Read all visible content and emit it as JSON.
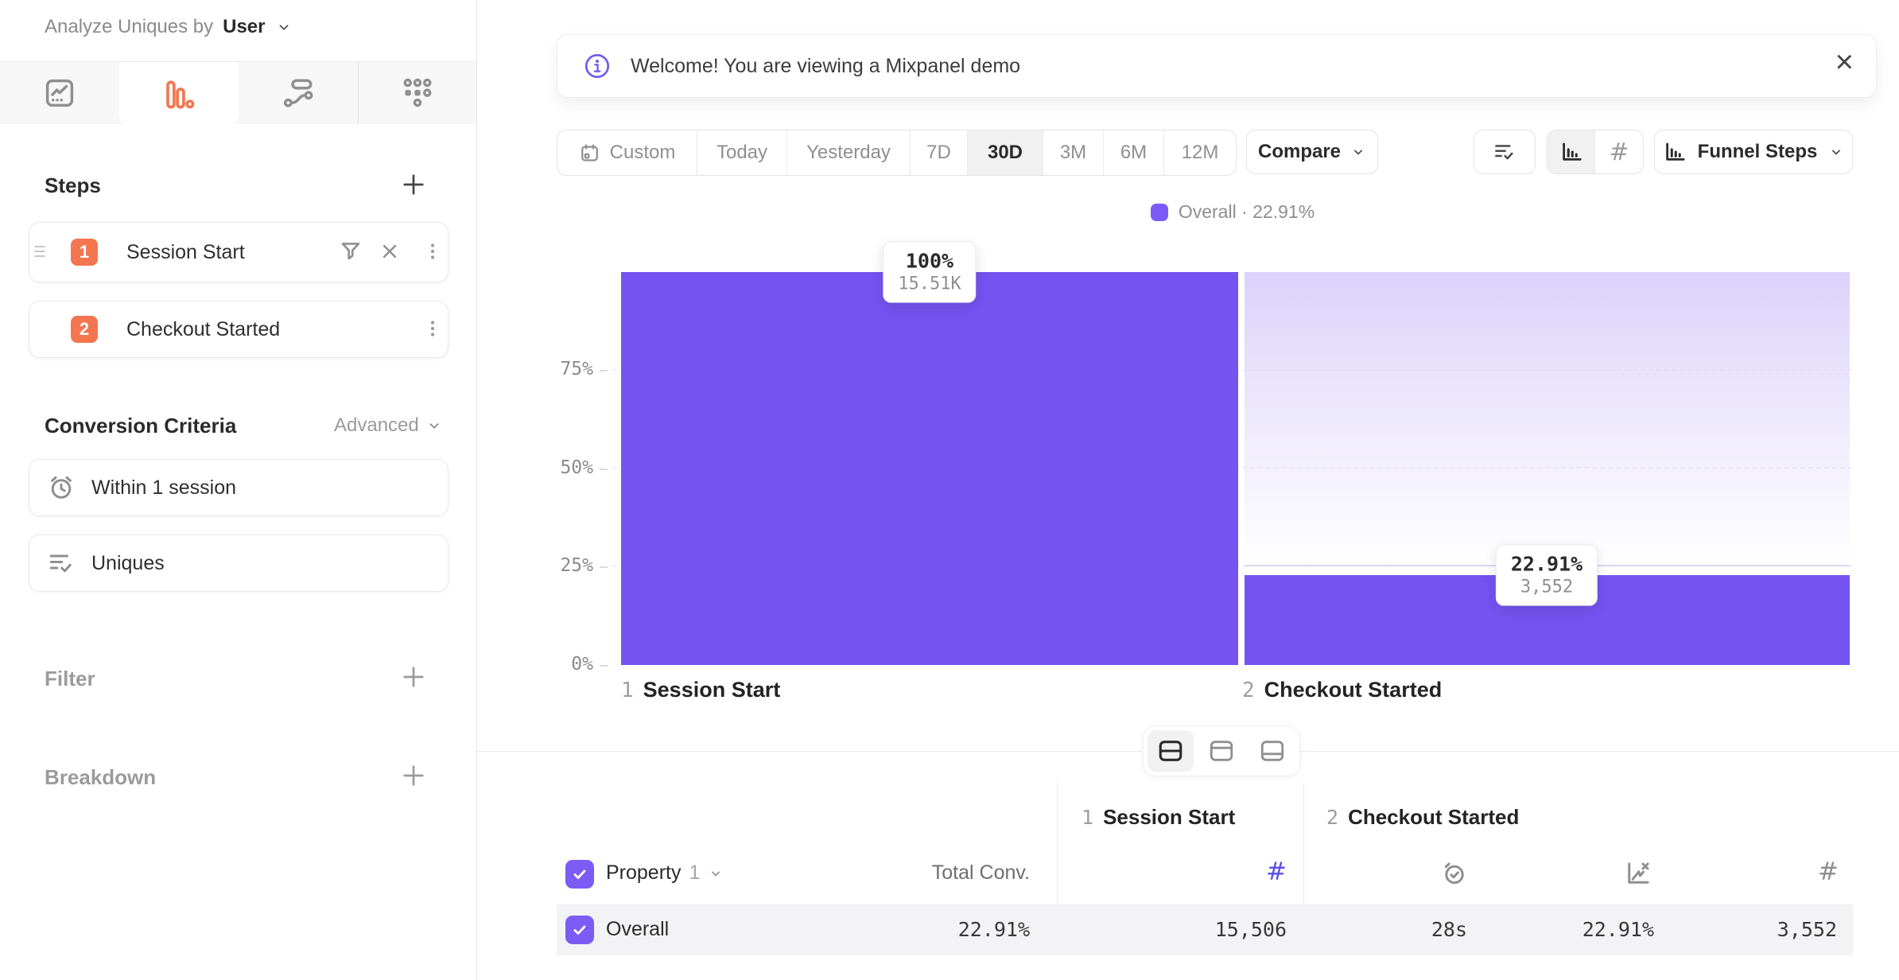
{
  "sidebar": {
    "analyze": {
      "label": "Analyze Uniques by",
      "value": "User"
    },
    "tabs": [
      "insights",
      "funnels",
      "flows",
      "retention"
    ],
    "active_tab": "funnels",
    "steps": {
      "title": "Steps",
      "items": [
        {
          "number": "1",
          "label": "Session Start"
        },
        {
          "number": "2",
          "label": "Checkout Started"
        }
      ]
    },
    "conversion_criteria": {
      "title": "Conversion Criteria",
      "advanced_label": "Advanced",
      "window": "Within 1 session",
      "counting": "Uniques"
    },
    "filter": {
      "title": "Filter"
    },
    "breakdown": {
      "title": "Breakdown"
    }
  },
  "banner": {
    "message": "Welcome! You are viewing a Mixpanel demo"
  },
  "toolbar": {
    "date_presets": [
      "Custom",
      "Today",
      "Yesterday",
      "7D",
      "30D",
      "3M",
      "6M",
      "12M"
    ],
    "active_preset": "30D",
    "compare_label": "Compare",
    "chart_type_label": "Funnel Steps"
  },
  "chart_data": {
    "type": "bar",
    "title": "",
    "legend": {
      "label": "Overall · 22.91%",
      "position": "top-center",
      "color": "#7b5bf7"
    },
    "yticks": [
      "0%",
      "25%",
      "50%",
      "75%"
    ],
    "ylim": [
      0,
      100
    ],
    "grid": "dashed-horizontal",
    "categories": [
      "Session Start",
      "Checkout Started"
    ],
    "bars": [
      {
        "step": "1",
        "category": "Session Start",
        "pct": 100,
        "pct_label": "100%",
        "count": 15510,
        "count_label": "15.51K"
      },
      {
        "step": "2",
        "category": "Checkout Started",
        "pct": 22.91,
        "pct_label": "22.91%",
        "count": 3552,
        "count_label": "3,552"
      }
    ]
  },
  "layout_toggle": [
    "split-view",
    "chart-only",
    "table-only"
  ],
  "table": {
    "property_label": "Property",
    "property_index": "1",
    "total_conv_label": "Total Conv.",
    "step_headers": [
      {
        "number": "1",
        "label": "Session Start"
      },
      {
        "number": "2",
        "label": "Checkout Started"
      }
    ],
    "rows": [
      {
        "name": "Overall",
        "total_conv": "22.91%",
        "step1_count": "15,506",
        "step2_avg_time": "28s",
        "step2_conv_rate": "22.91%",
        "step2_count": "3,552"
      }
    ]
  },
  "icons": {
    "plus": "+",
    "close": "×",
    "hash": "#"
  },
  "colors": {
    "accent_purple": "#7453f0",
    "gradient_purple": "#d9cff9",
    "badge_orange": "#f4764f",
    "checkbox_purple": "#7b5cf5",
    "hash_purple": "#5b4de8"
  }
}
